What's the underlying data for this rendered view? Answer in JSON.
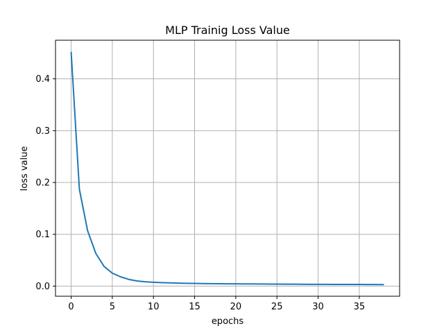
{
  "chart_data": {
    "type": "line",
    "title": "MLP Trainig Loss Value",
    "xlabel": "epochs",
    "ylabel": "loss value",
    "xlim": [
      -1.9,
      39.9
    ],
    "ylim": [
      -0.0195,
      0.4745
    ],
    "xticks": [
      0,
      5,
      10,
      15,
      20,
      25,
      30,
      35
    ],
    "yticks": [
      0.0,
      0.1,
      0.2,
      0.3,
      0.4
    ],
    "xtick_labels": [
      "0",
      "5",
      "10",
      "15",
      "20",
      "25",
      "30",
      "35"
    ],
    "ytick_labels": [
      "0.0",
      "0.1",
      "0.2",
      "0.3",
      "0.4"
    ],
    "grid": true,
    "series": [
      {
        "color": "#1f77b4",
        "x": [
          0,
          1,
          2,
          3,
          4,
          5,
          6,
          7,
          8,
          9,
          10,
          11,
          12,
          13,
          14,
          15,
          16,
          17,
          18,
          19,
          20,
          21,
          22,
          23,
          24,
          25,
          26,
          27,
          28,
          29,
          30,
          31,
          32,
          33,
          34,
          35,
          36,
          37,
          38
        ],
        "y": [
          0.452,
          0.187,
          0.107,
          0.063,
          0.038,
          0.025,
          0.018,
          0.013,
          0.01,
          0.0085,
          0.0075,
          0.0068,
          0.0062,
          0.0058,
          0.0055,
          0.0052,
          0.005,
          0.0048,
          0.0046,
          0.0045,
          0.0044,
          0.0043,
          0.0042,
          0.0041,
          0.004,
          0.0039,
          0.0038,
          0.0037,
          0.0036,
          0.0035,
          0.0034,
          0.0034,
          0.0033,
          0.0033,
          0.0032,
          0.0032,
          0.0031,
          0.0031,
          0.003
        ]
      }
    ]
  }
}
